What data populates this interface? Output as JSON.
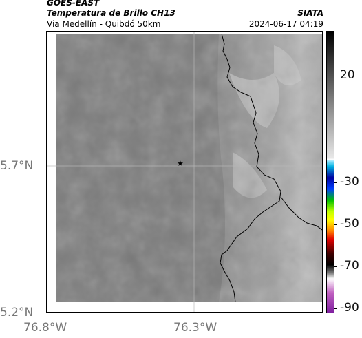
{
  "header": {
    "satellite": "GOES-EAST",
    "product": "Temperatura de Brillo CH13",
    "region": "Via Medellín - Quibdó 50km",
    "agency": "SIATA",
    "timestamp": "2024-06-17 04:19"
  },
  "axes": {
    "y_ticks": [
      "5.7°N",
      "5.2°N"
    ],
    "x_ticks": [
      "76.8°W",
      "76.3°W"
    ]
  },
  "colorbar": {
    "ticks": [
      "20",
      "-30",
      "-50",
      "-70",
      "-90"
    ]
  },
  "marker": {
    "name": "star",
    "symbol": "★"
  },
  "colors": {
    "ocean_gray": "#777777",
    "land_gray": "#8a8a8a",
    "cloud_light": "#bdbdbd",
    "coastline": "#000000"
  }
}
